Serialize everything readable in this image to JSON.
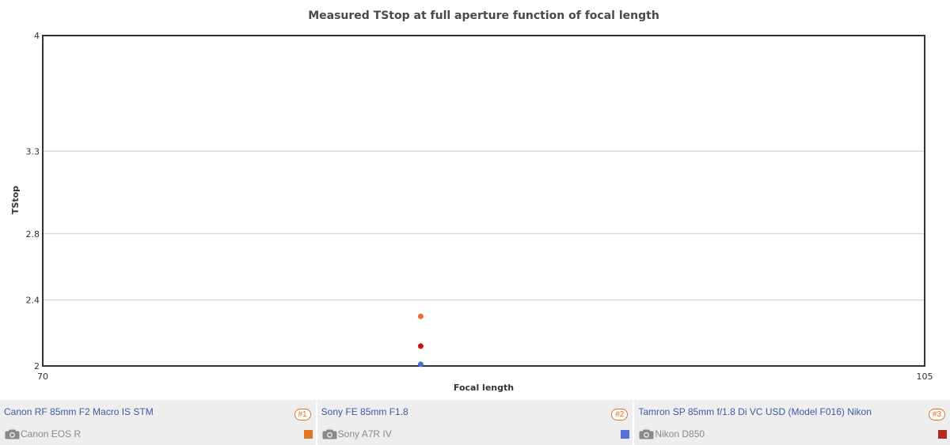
{
  "chart_data": {
    "type": "scatter",
    "title": "Measured TStop at full aperture function of focal length",
    "xlabel": "Focal length",
    "ylabel": "TStop",
    "xlim": [
      70,
      105
    ],
    "ylim": [
      2,
      4
    ],
    "x_ticks": [
      "70",
      "105"
    ],
    "y_ticks": [
      "2",
      "2.4",
      "2.8",
      "3.3",
      "4"
    ],
    "y_tick_values": [
      2,
      2.4,
      2.8,
      3.3,
      4
    ],
    "grid": true,
    "series": [
      {
        "name": "Canon RF 85mm F2 Macro IS STM",
        "x": [
          85
        ],
        "y": [
          2.3
        ],
        "color": "#f06a28"
      },
      {
        "name": "Tamron SP 85mm f/1.8 Di VC USD (Model F016) Nikon",
        "x": [
          85
        ],
        "y": [
          2.12
        ],
        "color": "#c0150f"
      },
      {
        "name": "Sony FE 85mm F1.8",
        "x": [
          85
        ],
        "y": [
          2.01
        ],
        "color": "#4a6fd8"
      }
    ]
  },
  "legend": [
    {
      "lens": "Canon RF 85mm F2 Macro IS STM",
      "camera": "Canon EOS R",
      "rank": "#1",
      "color": "#e07828",
      "icon": "camera-icon"
    },
    {
      "lens": "Sony FE 85mm F1.8",
      "camera": "Sony A7R IV",
      "rank": "#2",
      "color": "#5b6fd9",
      "icon": "camera-icon"
    },
    {
      "lens": "Tamron SP 85mm f/1.8 Di VC USD (Model F016) Nikon",
      "camera": "Nikon D850",
      "rank": "#3",
      "color": "#b22a22",
      "icon": "camera-icon"
    }
  ]
}
